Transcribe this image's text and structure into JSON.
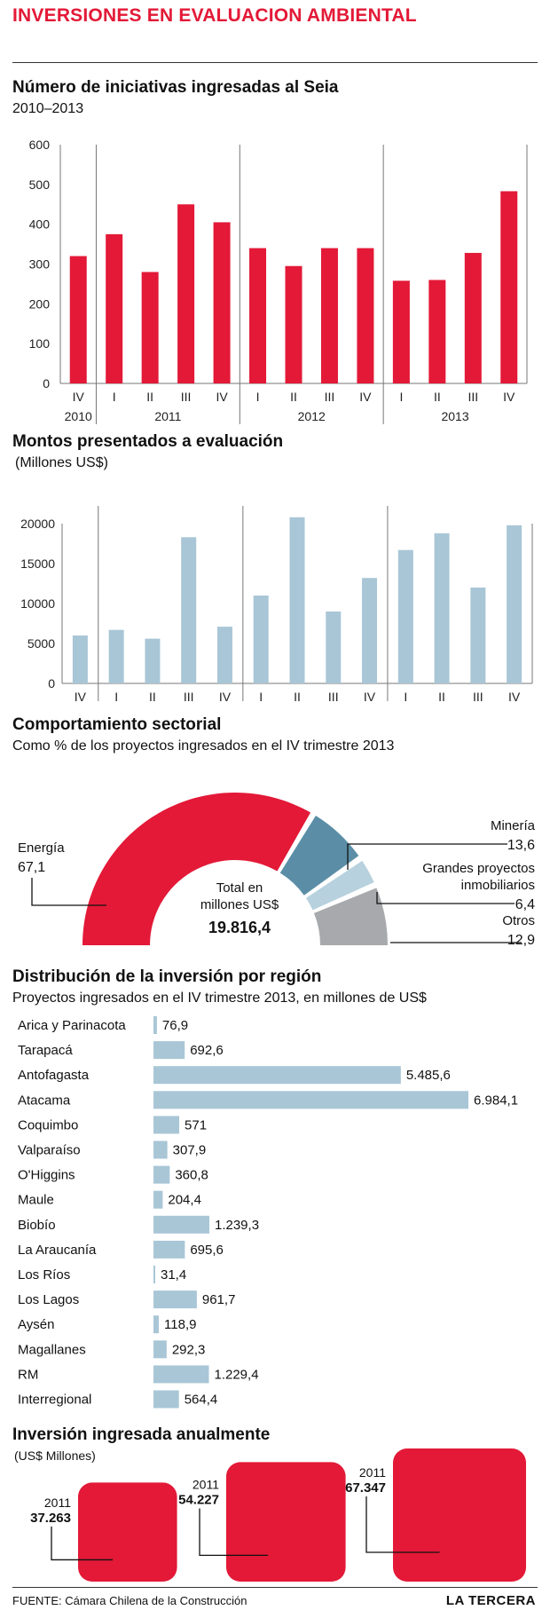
{
  "header": {
    "title": "INVERSIONES EN EVALUACION AMBIENTAL"
  },
  "colors": {
    "red": "#e31937",
    "blue": "#a9c6d6",
    "mineria": "#5b8ea6",
    "inmob": "#b7d1de",
    "otros": "#a7a9ac"
  },
  "charts": {
    "seia": {
      "title": "Número de iniciativas ingresadas al Seia",
      "subtitle": "2010–2013"
    },
    "montos": {
      "title": "Montos presentados a evaluación",
      "subtitle": "(Millones US$)"
    },
    "sector": {
      "title": "Comportamiento sectorial",
      "subtitle": "Como % de los proyectos ingresados en el IV trimestre 2013",
      "center_line1": "Total en",
      "center_line2": "millones US$",
      "center_value": "19.816,4"
    },
    "region": {
      "title": "Distribución de la inversión por región",
      "subtitle": "Proyectos ingresados en el IV trimestre 2013, en millones de US$"
    },
    "anual": {
      "title": "Inversión ingresada anualmente",
      "subtitle": "(US$ Millones)"
    }
  },
  "chart_data": [
    {
      "type": "bar",
      "title": "Número de iniciativas ingresadas al Seia",
      "subtitle": "2010–2013",
      "categories": [
        "IV",
        "I",
        "II",
        "III",
        "IV",
        "I",
        "II",
        "III",
        "IV",
        "I",
        "II",
        "III",
        "IV"
      ],
      "year_groups": [
        {
          "label": "2010",
          "count": 1
        },
        {
          "label": "2011",
          "count": 4
        },
        {
          "label": "2012",
          "count": 4
        },
        {
          "label": "2013",
          "count": 4
        }
      ],
      "values": [
        320,
        375,
        280,
        450,
        405,
        340,
        295,
        340,
        340,
        258,
        260,
        328,
        483
      ],
      "ylim": [
        0,
        600
      ],
      "yticks": [
        0,
        100,
        200,
        300,
        400,
        500,
        600
      ],
      "color": "#e31937",
      "grid": false
    },
    {
      "type": "bar",
      "title": "Montos presentados a evaluación",
      "ylabel": "(Millones US$)",
      "categories": [
        "IV",
        "I",
        "II",
        "III",
        "IV",
        "I",
        "II",
        "III",
        "IV",
        "I",
        "II",
        "III",
        "IV"
      ],
      "year_groups": [
        {
          "label": "2010",
          "count": 1
        },
        {
          "label": "2011",
          "count": 4
        },
        {
          "label": "2012",
          "count": 4
        },
        {
          "label": "2013",
          "count": 4
        }
      ],
      "values": [
        6000,
        6700,
        5600,
        18300,
        7100,
        11000,
        20800,
        9000,
        13200,
        16700,
        18800,
        12000,
        19800
      ],
      "ylim": [
        0,
        20000
      ],
      "yticks": [
        0,
        5000,
        10000,
        15000,
        20000
      ],
      "color": "#a9c6d6",
      "grid": false
    },
    {
      "type": "pie",
      "title": "Comportamiento sectorial",
      "subtitle": "Como % de los proyectos ingresados en el IV trimestre 2013",
      "slices": [
        {
          "label": "Energía",
          "value": 67.1,
          "display": "67,1",
          "color": "#e31937"
        },
        {
          "label": "Minería",
          "value": 13.6,
          "display": "13,6",
          "color": "#5b8ea6"
        },
        {
          "label_lines": [
            "Grandes proyectos",
            "inmobiliarios"
          ],
          "value": 6.4,
          "display": "6,4",
          "color": "#b7d1de"
        },
        {
          "label": "Otros",
          "value": 12.9,
          "display": "12,9",
          "color": "#a7a9ac"
        }
      ],
      "total_label": "Total en millones US$",
      "total": "19.816,4"
    },
    {
      "type": "bar",
      "orientation": "horizontal",
      "title": "Distribución de la inversión por región",
      "subtitle": "Proyectos ingresados en el IV trimestre 2013, en millones de US$",
      "categories": [
        "Arica y Parinacota",
        "Tarapacá",
        "Antofagasta",
        "Atacama",
        "Coquimbo",
        "Valparaíso",
        "O'Higgins",
        "Maule",
        "Biobío",
        "La Araucanía",
        "Los Ríos",
        "Los Lagos",
        "Aysén",
        "Magallanes",
        "RM",
        "Interregional"
      ],
      "values": [
        76.9,
        692.6,
        5485.6,
        6984.1,
        571,
        307.9,
        360.8,
        204.4,
        1239.3,
        695.6,
        31.4,
        961.7,
        118.9,
        292.3,
        1229.4,
        564.4
      ],
      "value_labels": [
        "76,9",
        "692,6",
        "5.485,6",
        "6.984,1",
        "571",
        "307,9",
        "360,8",
        "204,4",
        "1.239,3",
        "695,6",
        "31,4",
        "961,7",
        "118,9",
        "292,3",
        "1.229,4",
        "564,4"
      ],
      "color": "#a9c6d6"
    },
    {
      "type": "bar",
      "title": "Inversión ingresada anualmente",
      "ylabel": "(US$ Millones)",
      "categories": [
        "2011",
        "2011",
        "2011"
      ],
      "values": [
        37263,
        54227,
        67347
      ],
      "value_labels": [
        "37.263",
        "54.227",
        "67.347"
      ],
      "color": "#e31937"
    }
  ],
  "footer": {
    "source": "FUENTE: Cámara Chilena de la Construcción",
    "brand": "LA TERCERA"
  }
}
